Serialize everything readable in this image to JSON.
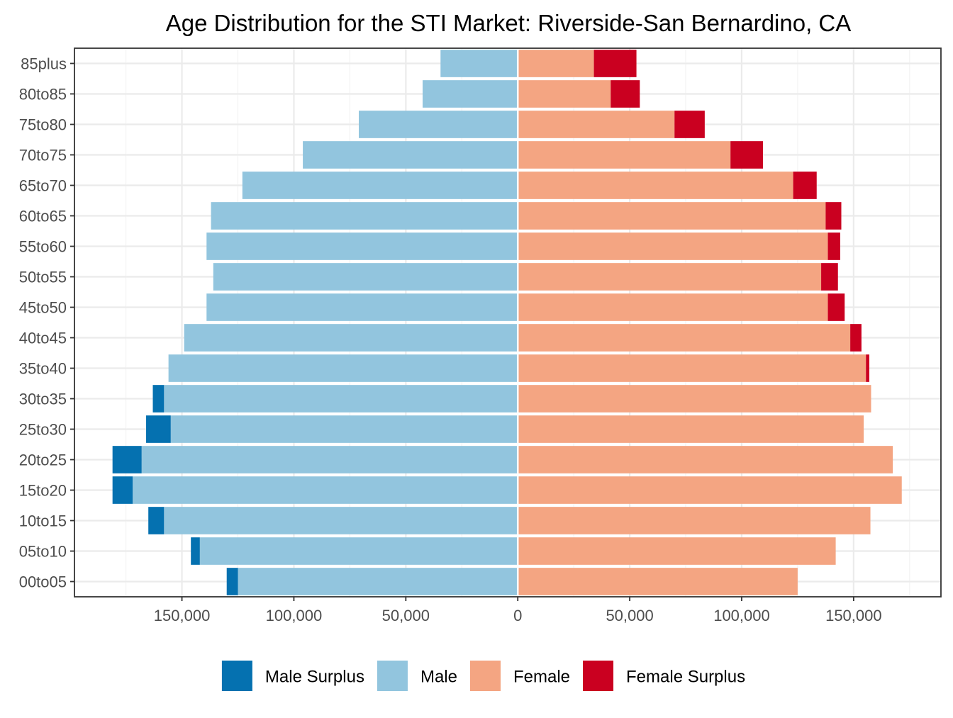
{
  "chart_data": {
    "type": "bar",
    "orientation": "horizontal-pyramid",
    "title": "Age Distribution for the STI Market: Riverside-San Bernardino, CA",
    "xlabel": "",
    "ylabel": "",
    "categories": [
      "00to05",
      "05to10",
      "10to15",
      "15to20",
      "20to25",
      "25to30",
      "30to35",
      "35to40",
      "40to45",
      "45to50",
      "50to55",
      "55to60",
      "60to65",
      "65to70",
      "70to75",
      "75to80",
      "80to85",
      "85plus"
    ],
    "male": [
      125000,
      142000,
      158000,
      172000,
      168000,
      155000,
      158000,
      156000,
      149000,
      139000,
      136000,
      139000,
      137000,
      123000,
      96000,
      71000,
      42500,
      34500
    ],
    "female": [
      125000,
      142000,
      157500,
      171500,
      167500,
      154500,
      157800,
      155500,
      148500,
      138500,
      135500,
      138500,
      137500,
      123000,
      95000,
      70000,
      41500,
      34000
    ],
    "male_surplus": [
      5000,
      4000,
      7000,
      9000,
      13000,
      11000,
      5000,
      0,
      0,
      0,
      0,
      0,
      0,
      0,
      0,
      0,
      0,
      0
    ],
    "female_surplus": [
      0,
      0,
      0,
      0,
      0,
      0,
      0,
      1500,
      5000,
      7500,
      7500,
      5500,
      7000,
      10500,
      14500,
      13500,
      13000,
      19000
    ],
    "xlim": [
      -198000,
      189000
    ],
    "x_ticks": [
      -150000,
      -100000,
      -50000,
      0,
      50000,
      100000,
      150000
    ],
    "x_tick_labels": [
      "150,000",
      "100,000",
      "50,000",
      "0",
      "50,000",
      "100,000",
      "150,000"
    ],
    "legend": {
      "position": "bottom",
      "entries": [
        {
          "key": "male_surplus",
          "label": "Male Surplus",
          "color": "#0571b0"
        },
        {
          "key": "male",
          "label": "Male",
          "color": "#92c5de"
        },
        {
          "key": "female",
          "label": "Female",
          "color": "#f4a582"
        },
        {
          "key": "female_surplus",
          "label": "Female Surplus",
          "color": "#ca0020"
        }
      ]
    },
    "grid": true
  }
}
